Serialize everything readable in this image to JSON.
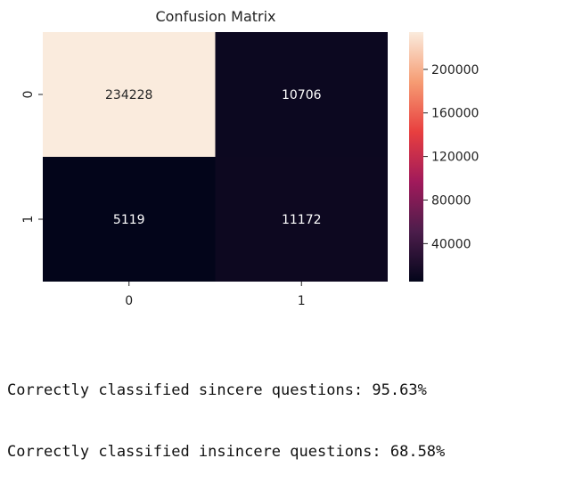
{
  "chart_data": {
    "type": "heatmap",
    "title": "Confusion Matrix",
    "x_categories": [
      "0",
      "1"
    ],
    "y_categories": [
      "0",
      "1"
    ],
    "values": [
      [
        234228,
        10706
      ],
      [
        5119,
        11172
      ]
    ],
    "xlabel": "",
    "ylabel": "",
    "colorbar": {
      "ticks": [
        40000,
        80000,
        120000,
        160000,
        200000
      ],
      "range": [
        5119,
        234228
      ],
      "colormap": "rocket",
      "stops": [
        "#03051a",
        "#4c1d4b",
        "#a11a5b",
        "#e83f3f",
        "#f69c73",
        "#faebdd"
      ]
    }
  },
  "output_lines": [
    "Correctly classified sincere questions: 95.63%",
    "Correctly classified insincere questions: 68.58%"
  ]
}
